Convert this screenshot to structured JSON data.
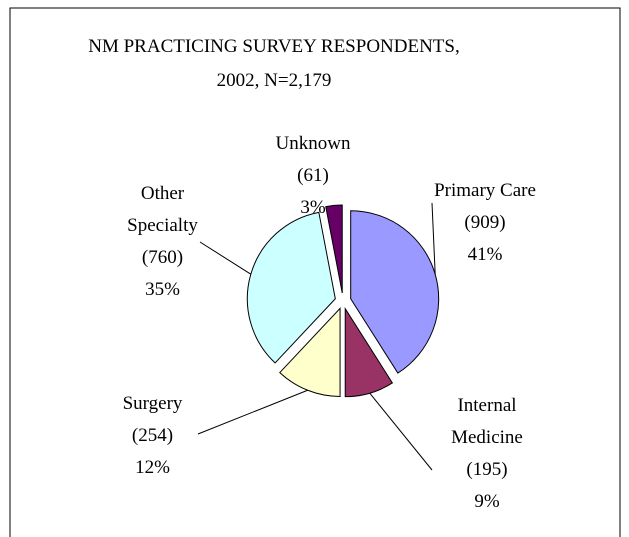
{
  "chart_data": {
    "type": "pie",
    "title": "NM  PRACTICING SURVEY RESPONDENTS, 2002, N=2,179",
    "categories": [
      "Primary Care",
      "Internal Medicine",
      "Surgery",
      "Other Specialty",
      "Unknown"
    ],
    "values": [
      41,
      9,
      12,
      35,
      3
    ],
    "value_labels": [
      "41%",
      "9%",
      "12%",
      "35%",
      "3%"
    ],
    "counts": [
      909,
      195,
      254,
      760,
      61
    ],
    "count_labels": [
      "(909)",
      "(195)",
      "(254)",
      "(760)",
      "(61)"
    ],
    "colors": [
      "#9999ff",
      "#993366",
      "#ffffcc",
      "#ccffff",
      "#660066"
    ]
  }
}
